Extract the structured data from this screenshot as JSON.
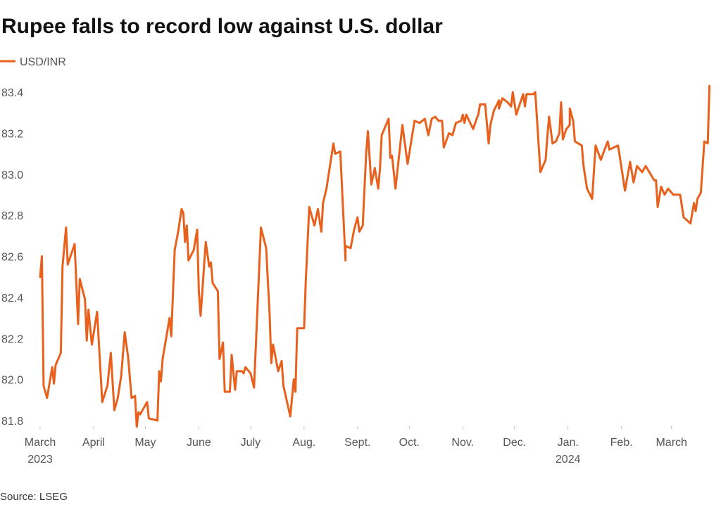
{
  "chart_data": {
    "type": "line",
    "title": "Rupee falls to record low against U.S. dollar",
    "source": "Source: LSEG",
    "xlabel": "",
    "ylabel": "",
    "ylim": [
      81.8,
      83.4
    ],
    "yticks": [
      "81.8",
      "82.0",
      "82.2",
      "82.4",
      "82.6",
      "82.8",
      "83.0",
      "83.2",
      "83.4"
    ],
    "grid": false,
    "legend": "top-left",
    "line_color": "#e8601c",
    "xticks": [
      {
        "day": 0,
        "label": "March",
        "sub": "2023"
      },
      {
        "day": 31,
        "label": "April"
      },
      {
        "day": 61,
        "label": "May"
      },
      {
        "day": 92,
        "label": "June"
      },
      {
        "day": 122,
        "label": "July"
      },
      {
        "day": 153,
        "label": "Aug."
      },
      {
        "day": 184,
        "label": "Sept."
      },
      {
        "day": 214,
        "label": "Oct."
      },
      {
        "day": 245,
        "label": "Nov."
      },
      {
        "day": 275,
        "label": "Dec."
      },
      {
        "day": 306,
        "label": "Jan.",
        "sub": "2024"
      },
      {
        "day": 337,
        "label": "Feb."
      },
      {
        "day": 366,
        "label": "March"
      }
    ],
    "series": [
      {
        "name": "USD/INR",
        "day": [
          0,
          1,
          2,
          4,
          7,
          8,
          9,
          12,
          13,
          15,
          16,
          20,
          22,
          23,
          26,
          27,
          28,
          30,
          33,
          36,
          39,
          41,
          43,
          45,
          47,
          49,
          51,
          53,
          55,
          56,
          57,
          58,
          62,
          63,
          68,
          69,
          70,
          71,
          75,
          76,
          78,
          80,
          82,
          83,
          84,
          85,
          86,
          89,
          91,
          92,
          93,
          96,
          98,
          99,
          100,
          103,
          104,
          106,
          107,
          110,
          111,
          113,
          114,
          117,
          118,
          119,
          122,
          124,
          128,
          131,
          133,
          134,
          135,
          138,
          140,
          141,
          145,
          147,
          148,
          149,
          153,
          154,
          156,
          159,
          161,
          163,
          164,
          166,
          170,
          171,
          174,
          177,
          177,
          180,
          182,
          184,
          185,
          187,
          189,
          190,
          192,
          194,
          196,
          197,
          198,
          202,
          203,
          204,
          206,
          210,
          213,
          217,
          220,
          223,
          225,
          227,
          229,
          231,
          233,
          234,
          237,
          239,
          241,
          244,
          245,
          246,
          247,
          251,
          253,
          254,
          255,
          258,
          260,
          261,
          263,
          266,
          266,
          268,
          271,
          273,
          274,
          276,
          280,
          281,
          282,
          286,
          287,
          290,
          293,
          294,
          295,
          297,
          299,
          301,
          302,
          303,
          305,
          307,
          307,
          309,
          310,
          314,
          315,
          317,
          320,
          322,
          325,
          329,
          330,
          335,
          339,
          342,
          344,
          346,
          349,
          351,
          356,
          357,
          358,
          360,
          362,
          364,
          367,
          371,
          373,
          377,
          379,
          380,
          381,
          383,
          385,
          387,
          388
        ],
        "values": [
          82.5,
          82.6,
          81.97,
          81.91,
          82.06,
          81.98,
          82.07,
          82.13,
          82.55,
          82.74,
          82.56,
          82.66,
          82.27,
          82.49,
          82.39,
          82.19,
          82.34,
          82.17,
          82.33,
          81.89,
          81.97,
          82.13,
          81.85,
          81.91,
          82.02,
          82.23,
          82.11,
          81.91,
          81.92,
          81.77,
          81.84,
          81.83,
          81.89,
          81.81,
          81.8,
          82.04,
          81.99,
          82.1,
          82.3,
          82.21,
          82.63,
          82.72,
          82.83,
          82.81,
          82.67,
          82.75,
          82.58,
          82.63,
          82.73,
          82.43,
          82.31,
          82.67,
          82.55,
          82.57,
          82.47,
          82.43,
          82.1,
          82.18,
          81.94,
          81.94,
          82.12,
          81.95,
          82.04,
          82.04,
          82.03,
          82.06,
          82.03,
          81.96,
          82.74,
          82.64,
          82.32,
          82.08,
          82.17,
          82.04,
          82.09,
          81.97,
          81.82,
          82.0,
          81.94,
          82.25,
          82.25,
          82.48,
          82.84,
          82.75,
          82.83,
          82.72,
          82.86,
          82.93,
          83.15,
          83.1,
          83.11,
          82.58,
          82.65,
          82.64,
          82.73,
          82.79,
          82.72,
          82.75,
          83.1,
          83.21,
          82.95,
          83.03,
          82.93,
          83.03,
          83.19,
          83.27,
          83.08,
          83.09,
          82.93,
          83.24,
          83.05,
          83.26,
          83.25,
          83.27,
          83.19,
          83.27,
          83.28,
          83.26,
          83.26,
          83.13,
          83.2,
          83.19,
          83.25,
          83.26,
          83.29,
          83.25,
          83.29,
          83.22,
          83.27,
          83.29,
          83.34,
          83.34,
          83.15,
          83.24,
          83.31,
          83.36,
          83.32,
          83.37,
          83.35,
          83.33,
          83.4,
          83.29,
          83.39,
          83.33,
          83.39,
          83.39,
          83.4,
          83.01,
          83.07,
          83.18,
          83.28,
          83.15,
          83.16,
          83.2,
          83.35,
          83.17,
          83.22,
          83.24,
          83.32,
          83.26,
          83.16,
          83.14,
          83.04,
          82.93,
          82.88,
          83.14,
          83.07,
          83.16,
          83.12,
          83.14,
          82.92,
          83.06,
          82.96,
          83.04,
          83.01,
          83.04,
          82.97,
          82.97,
          82.84,
          82.94,
          82.9,
          82.93,
          82.9,
          82.9,
          82.79,
          82.76,
          82.86,
          82.82,
          82.88,
          82.91,
          83.16,
          83.15,
          83.43
        ]
      }
    ]
  }
}
